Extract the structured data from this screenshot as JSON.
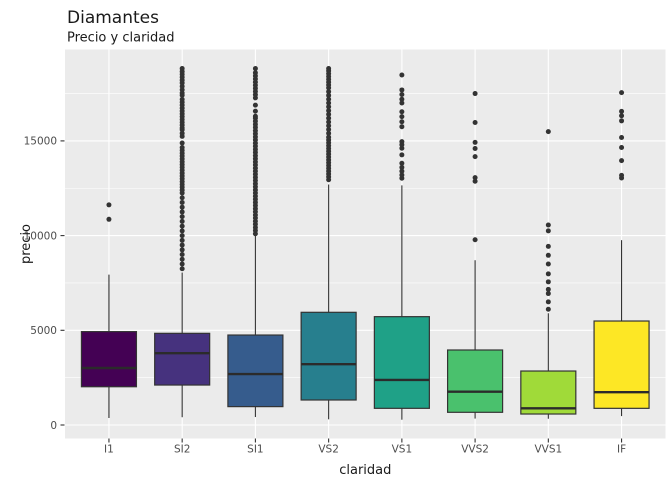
{
  "chart_data": {
    "type": "boxplot",
    "title": "Diamantes",
    "subtitle": "Precio y claridad",
    "xlabel": "claridad",
    "ylabel": "precio",
    "categories": [
      "I1",
      "SI2",
      "SI1",
      "VS2",
      "VS1",
      "VVS2",
      "VVS1",
      "IF"
    ],
    "y_ticks": [
      0,
      5000,
      10000,
      15000
    ],
    "y_tick_labels": [
      "0",
      "5000",
      "10000",
      "15000"
    ],
    "y_minor_ticks": [
      2500,
      7500,
      12500,
      17500
    ],
    "ylim": [
      -700,
      19800
    ],
    "legend": "none",
    "grid": "white major and minor gridlines on grey panel",
    "palette_name": "viridis",
    "colors": {
      "panel_bg": "#EBEBEB",
      "grid": "#FFFFFF",
      "box_stroke": "#333333",
      "median_line": "#2B2B2B",
      "outlier_dot": "#333333",
      "tick_mark": "#333333",
      "tick_text": "#4D4D4D",
      "text": "#1A1A1A"
    },
    "series": [
      {
        "name": "I1",
        "fill": "#440154",
        "whisker_low": 370,
        "q1": 2020,
        "median": 3010,
        "q3": 4930,
        "whisker_high": 7940,
        "outliers": [
          10860,
          11620
        ]
      },
      {
        "name": "SI2",
        "fill": "#46327E",
        "whisker_low": 410,
        "q1": 2110,
        "median": 3790,
        "q3": 4840,
        "whisker_high": 8050,
        "outliers": [
          8250,
          8500,
          8750,
          9000,
          9250,
          9500,
          9750,
          10000,
          10250,
          10500,
          10750,
          11000,
          11250,
          11500,
          11750,
          12000,
          12250,
          12400,
          12550,
          12700,
          12850,
          13000,
          13150,
          13300,
          13450,
          13600,
          13750,
          13900,
          14050,
          14200,
          14350,
          14500,
          14650,
          14890,
          15240,
          15400,
          15590,
          15680,
          15830,
          15980,
          16130,
          16280,
          16430,
          16580,
          16730,
          16890,
          17040,
          17190,
          17410,
          17530,
          17700,
          17880,
          18060,
          18210,
          18360,
          18510,
          18660,
          18820
        ]
      },
      {
        "name": "SI1",
        "fill": "#365C8D",
        "whisker_low": 420,
        "q1": 970,
        "median": 2690,
        "q3": 4750,
        "whisker_high": 10050,
        "outliers": [
          10100,
          10270,
          10430,
          10600,
          10760,
          10930,
          11090,
          11260,
          11420,
          11590,
          11750,
          11920,
          12080,
          12250,
          12410,
          12580,
          12740,
          12910,
          13070,
          13240,
          13400,
          13560,
          13730,
          13890,
          14060,
          14220,
          14390,
          14550,
          14720,
          14880,
          15050,
          15210,
          15380,
          15540,
          15710,
          15870,
          16040,
          16200,
          16300,
          16570,
          16890,
          17270,
          17440,
          17610,
          17770,
          17940,
          18100,
          18270,
          18430,
          18600,
          18820
        ]
      },
      {
        "name": "VS2",
        "fill": "#277F8E",
        "whisker_low": 300,
        "q1": 1320,
        "median": 3210,
        "q3": 5950,
        "whisker_high": 12700,
        "outliers": [
          12950,
          13100,
          13250,
          13400,
          13550,
          13700,
          13850,
          14000,
          14150,
          14300,
          14450,
          14600,
          14750,
          14900,
          15050,
          15200,
          15400,
          15600,
          15800,
          16000,
          16200,
          16400,
          16600,
          16800,
          17000,
          17200,
          17400,
          17600,
          17800,
          17950,
          18100,
          18250,
          18400,
          18550,
          18700,
          18820
        ]
      },
      {
        "name": "VS1",
        "fill": "#1FA187",
        "whisker_low": 280,
        "q1": 880,
        "median": 2380,
        "q3": 5720,
        "whisker_high": 12650,
        "outliers": [
          13030,
          13200,
          13400,
          13600,
          13820,
          14260,
          14610,
          14800,
          14960,
          15750,
          16010,
          16280,
          16540,
          17000,
          17200,
          17450,
          17690,
          18480
        ]
      },
      {
        "name": "VVS2",
        "fill": "#4AC16D",
        "whisker_low": 340,
        "q1": 670,
        "median": 1760,
        "q3": 3960,
        "whisker_high": 8700,
        "outliers": [
          9780,
          12870,
          13060,
          14170,
          14600,
          14920,
          15970,
          17500
        ]
      },
      {
        "name": "VVS1",
        "fill": "#A0DA39",
        "whisker_low": 330,
        "q1": 580,
        "median": 880,
        "q3": 2850,
        "whisker_high": 5900,
        "outliers": [
          6110,
          6500,
          6940,
          7160,
          7560,
          7980,
          8500,
          8960,
          9430,
          10250,
          10560,
          15490
        ]
      },
      {
        "name": "IF",
        "fill": "#FDE725",
        "whisker_low": 470,
        "q1": 880,
        "median": 1730,
        "q3": 5490,
        "whisker_high": 9760,
        "outliers": [
          13040,
          13180,
          13960,
          14650,
          15180,
          16060,
          16330,
          16560,
          17550
        ]
      }
    ]
  }
}
